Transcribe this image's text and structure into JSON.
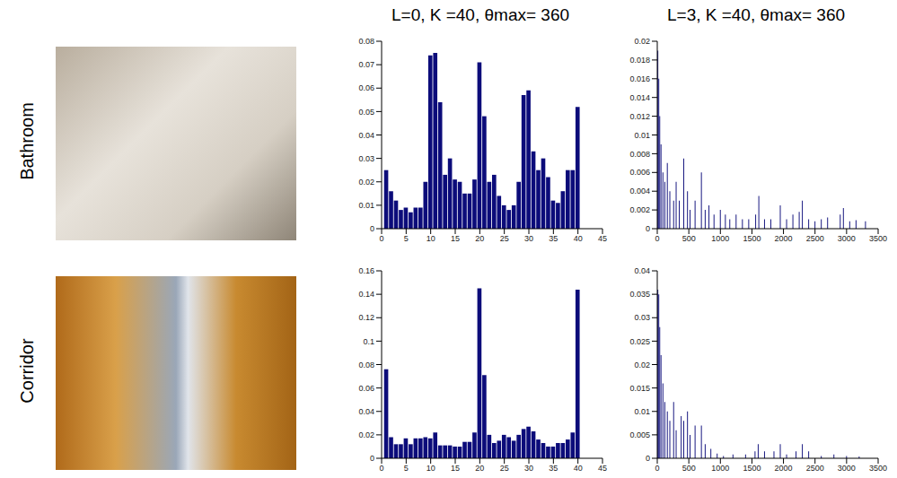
{
  "rows": [
    "Bathroom",
    "Corridor"
  ],
  "columns": [
    "L=0,   K =40, θmax= 360",
    "L=3,   K =40, θmax= 360"
  ],
  "chart_data": [
    {
      "type": "bar",
      "color": "#0c0c7a",
      "x": [
        1,
        2,
        3,
        4,
        5,
        6,
        7,
        8,
        9,
        10,
        11,
        12,
        13,
        14,
        15,
        16,
        17,
        18,
        19,
        20,
        21,
        22,
        23,
        24,
        25,
        26,
        27,
        28,
        29,
        30,
        31,
        32,
        33,
        34,
        35,
        36,
        37,
        38,
        39,
        40
      ],
      "values": [
        0.025,
        0.016,
        0.012,
        0.008,
        0.009,
        0.007,
        0.009,
        0.009,
        0.02,
        0.074,
        0.075,
        0.054,
        0.023,
        0.03,
        0.021,
        0.02,
        0.015,
        0.015,
        0.021,
        0.071,
        0.048,
        0.02,
        0.023,
        0.014,
        0.01,
        0.008,
        0.01,
        0.02,
        0.057,
        0.059,
        0.033,
        0.025,
        0.03,
        0.022,
        0.012,
        0.011,
        0.016,
        0.025,
        0.025,
        0.052
      ],
      "xlim": [
        0,
        45
      ],
      "xticks": [
        0,
        5,
        10,
        15,
        20,
        25,
        30,
        35,
        40,
        45
      ],
      "ylim": [
        0,
        0.08
      ],
      "yticks": [
        0,
        0.01,
        0.02,
        0.03,
        0.04,
        0.05,
        0.06,
        0.07,
        0.08
      ]
    },
    {
      "type": "bar",
      "color": "#0c0c7a",
      "x": [
        10,
        25,
        40,
        60,
        90,
        120,
        160,
        200,
        260,
        300,
        350,
        420,
        480,
        520,
        600,
        700,
        760,
        820,
        900,
        1000,
        1080,
        1150,
        1250,
        1350,
        1450,
        1560,
        1610,
        1700,
        1800,
        1950,
        2050,
        2150,
        2250,
        2300,
        2400,
        2500,
        2600,
        2700,
        2900,
        2950,
        3050,
        3150,
        3300
      ],
      "values": [
        0.019,
        0.016,
        0.012,
        0.009,
        0.006,
        0.005,
        0.007,
        0.004,
        0.003,
        0.005,
        0.003,
        0.0075,
        0.004,
        0.002,
        0.003,
        0.006,
        0.002,
        0.0025,
        0.0015,
        0.002,
        0.0015,
        0.001,
        0.0015,
        0.001,
        0.001,
        0.0015,
        0.0035,
        0.001,
        0.001,
        0.0025,
        0.001,
        0.0015,
        0.0018,
        0.003,
        0.001,
        0.0008,
        0.001,
        0.0012,
        0.0015,
        0.0022,
        0.0008,
        0.0009,
        0.0008
      ],
      "xlim": [
        0,
        3500
      ],
      "xticks": [
        0,
        500,
        1000,
        1500,
        2000,
        2500,
        3000,
        3500
      ],
      "ylim": [
        0,
        0.02
      ],
      "yticks": [
        0,
        0.002,
        0.004,
        0.006,
        0.008,
        0.01,
        0.012,
        0.014,
        0.016,
        0.018,
        0.02
      ]
    },
    {
      "type": "bar",
      "color": "#0c0c7a",
      "x": [
        1,
        2,
        3,
        4,
        5,
        6,
        7,
        8,
        9,
        10,
        11,
        12,
        13,
        14,
        15,
        16,
        17,
        18,
        19,
        20,
        21,
        22,
        23,
        24,
        25,
        26,
        27,
        28,
        29,
        30,
        31,
        32,
        33,
        34,
        35,
        36,
        37,
        38,
        39,
        40
      ],
      "values": [
        0.076,
        0.018,
        0.012,
        0.012,
        0.017,
        0.012,
        0.017,
        0.017,
        0.018,
        0.017,
        0.022,
        0.011,
        0.011,
        0.011,
        0.01,
        0.01,
        0.014,
        0.014,
        0.022,
        0.145,
        0.071,
        0.02,
        0.013,
        0.015,
        0.02,
        0.018,
        0.015,
        0.02,
        0.025,
        0.027,
        0.023,
        0.016,
        0.013,
        0.01,
        0.01,
        0.013,
        0.013,
        0.016,
        0.022,
        0.144
      ],
      "xlim": [
        0,
        45
      ],
      "xticks": [
        0,
        5,
        10,
        15,
        20,
        25,
        30,
        35,
        40,
        45
      ],
      "ylim": [
        0,
        0.16
      ],
      "yticks": [
        0,
        0.02,
        0.04,
        0.06,
        0.08,
        0.1,
        0.12,
        0.14,
        0.16
      ]
    },
    {
      "type": "bar",
      "color": "#0c0c7a",
      "x": [
        10,
        25,
        40,
        60,
        90,
        120,
        160,
        200,
        260,
        300,
        380,
        420,
        480,
        520,
        600,
        700,
        760,
        850,
        950,
        1050,
        1200,
        1400,
        1550,
        1600,
        1700,
        1850,
        1950,
        2050,
        2200,
        2300,
        2400,
        2600,
        2800,
        3000,
        3200
      ],
      "values": [
        0.036,
        0.035,
        0.028,
        0.022,
        0.016,
        0.012,
        0.01,
        0.008,
        0.012,
        0.006,
        0.009,
        0.008,
        0.01,
        0.005,
        0.007,
        0.007,
        0.003,
        0.002,
        0.001,
        0.0005,
        0.0008,
        0.0008,
        0.0015,
        0.003,
        0.0015,
        0.0015,
        0.003,
        0.0008,
        0.0015,
        0.003,
        0.0015,
        0.0005,
        0.0008,
        0.0005,
        0.0004
      ],
      "xlim": [
        0,
        3500
      ],
      "xticks": [
        0,
        500,
        1000,
        1500,
        2000,
        2500,
        3000,
        3500
      ],
      "ylim": [
        0,
        0.04
      ],
      "yticks": [
        0,
        0.005,
        0.01,
        0.015,
        0.02,
        0.025,
        0.03,
        0.035,
        0.04
      ]
    }
  ]
}
